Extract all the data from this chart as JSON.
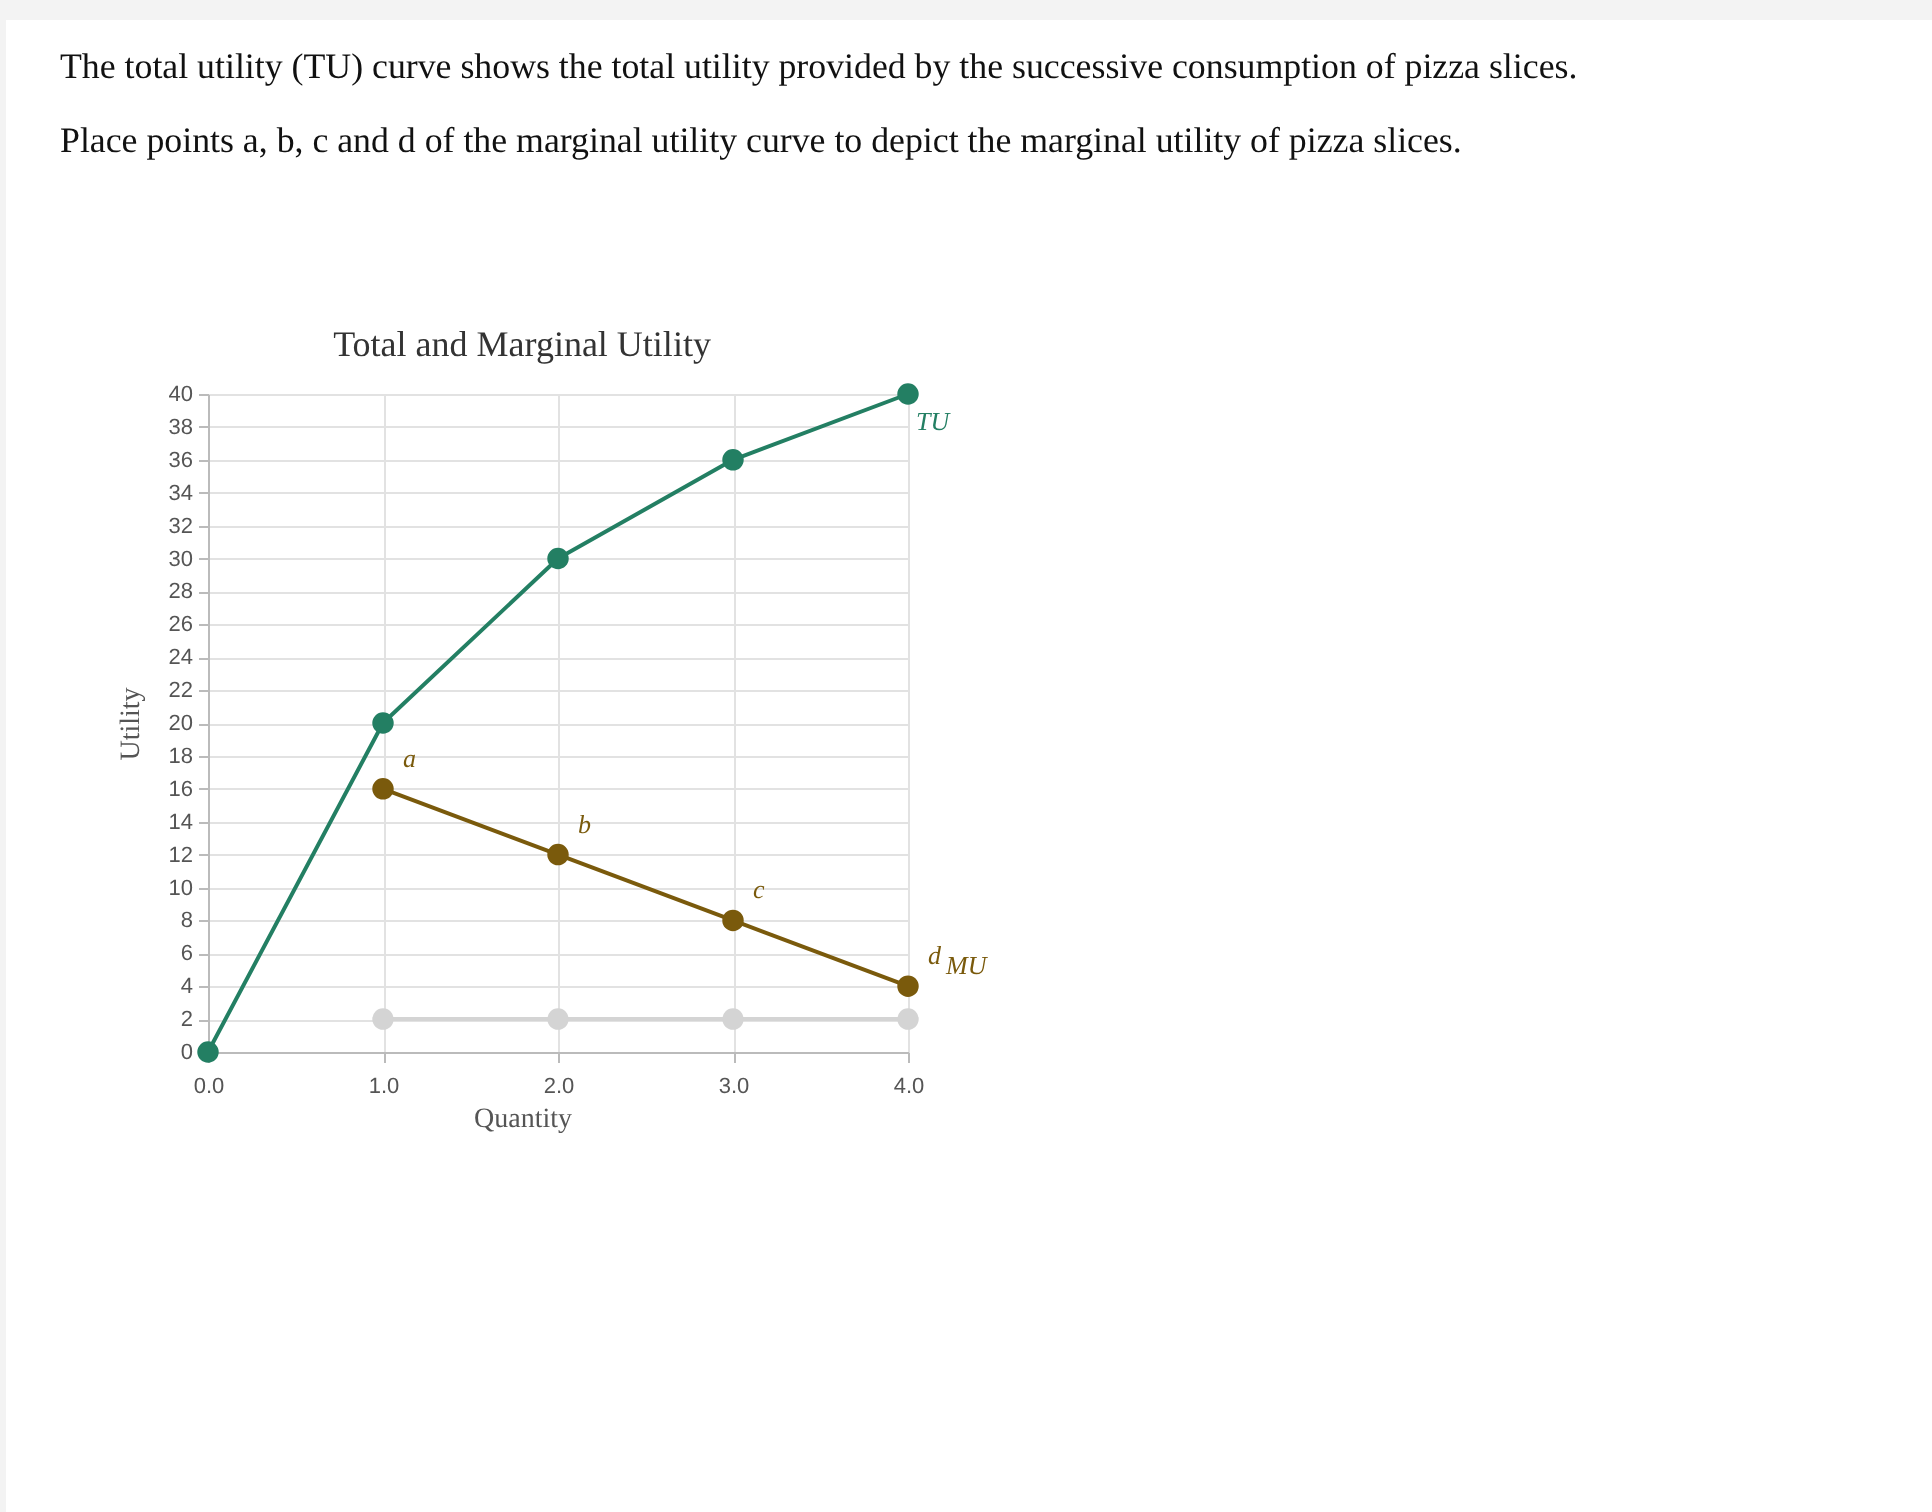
{
  "chart_data": {
    "type": "line",
    "title": "Total and Marginal Utility",
    "xlabel": "Quantity",
    "ylabel": "Utility",
    "annotations": [
      "The total utility (TU) curve shows the total utility provided by the successive consumption of pizza slices.",
      "Place points a, b, c and d of the marginal utility curve to depict the marginal utility of pizza slices.",
      {
        "text": "a",
        "x": 1,
        "y": 16
      },
      {
        "text": "b",
        "x": 2,
        "y": 12
      },
      {
        "text": "c",
        "x": 3,
        "y": 8
      },
      {
        "text": "d",
        "x": 4,
        "y": 4
      }
    ],
    "series": [
      {
        "name": "TU",
        "color": "#237f63",
        "x": [
          0,
          1,
          2,
          3,
          4
        ],
        "values": [
          0,
          20,
          30,
          36,
          40
        ]
      },
      {
        "name": "MU",
        "color": "#7a5a0c",
        "x": [
          1,
          2,
          3,
          4
        ],
        "values": [
          16,
          12,
          8,
          4
        ]
      },
      {
        "color": "#d4d4d4",
        "x": [
          1,
          2,
          3,
          4
        ],
        "values": [
          2,
          2,
          2,
          2
        ]
      }
    ],
    "xlim": [
      0,
      4
    ],
    "ylim": [
      0,
      40
    ],
    "xticks": [
      {
        "value": 0,
        "label": "0.0"
      },
      {
        "value": 1,
        "label": "1.0"
      },
      {
        "value": 2,
        "label": "2.0"
      },
      {
        "value": 3,
        "label": "3.0"
      },
      {
        "value": 4,
        "label": "4.0"
      }
    ],
    "yticks": [
      0,
      2,
      4,
      6,
      8,
      10,
      12,
      14,
      16,
      18,
      20,
      22,
      24,
      26,
      28,
      30,
      32,
      34,
      36,
      38,
      40
    ],
    "grid": true,
    "marker": "circle"
  }
}
